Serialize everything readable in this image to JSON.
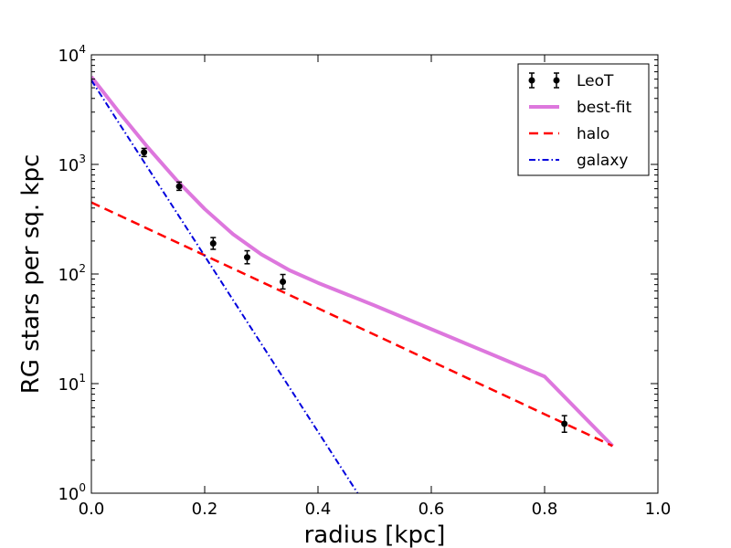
{
  "chart_data": {
    "type": "line",
    "xlabel": "radius [kpc]",
    "ylabel": "RG stars per sq. kpc",
    "xlim": [
      0.0,
      1.0
    ],
    "ylim": [
      1,
      10000
    ],
    "yscale": "log",
    "grid": false,
    "legend_position": "top-right",
    "x_ticks": [
      {
        "value": 0.0,
        "label": "0.0"
      },
      {
        "value": 0.2,
        "label": "0.2"
      },
      {
        "value": 0.4,
        "label": "0.4"
      },
      {
        "value": 0.6,
        "label": "0.6"
      },
      {
        "value": 0.8,
        "label": "0.8"
      },
      {
        "value": 1.0,
        "label": "1.0"
      }
    ],
    "y_ticks": [
      {
        "value": 1,
        "base": "10",
        "exp": "0"
      },
      {
        "value": 10,
        "base": "10",
        "exp": "1"
      },
      {
        "value": 100,
        "base": "10",
        "exp": "2"
      },
      {
        "value": 1000,
        "base": "10",
        "exp": "3"
      },
      {
        "value": 10000,
        "base": "10",
        "exp": "4"
      }
    ],
    "observed": {
      "name": "LeoT",
      "color": "#000000",
      "points": [
        {
          "x": 0.093,
          "y": 1290,
          "err_low": 1180,
          "err_high": 1400
        },
        {
          "x": 0.155,
          "y": 630,
          "err_low": 580,
          "err_high": 690
        },
        {
          "x": 0.215,
          "y": 190,
          "err_low": 168,
          "err_high": 215
        },
        {
          "x": 0.275,
          "y": 142,
          "err_low": 124,
          "err_high": 163
        },
        {
          "x": 0.338,
          "y": 85,
          "err_low": 73,
          "err_high": 99
        },
        {
          "x": 0.835,
          "y": 4.3,
          "err_low": 3.6,
          "err_high": 5.1
        }
      ]
    },
    "series": [
      {
        "name": "best-fit",
        "color": "#dd77dd",
        "style": "solid",
        "x": [
          0.0,
          0.05,
          0.1,
          0.15,
          0.2,
          0.25,
          0.3,
          0.35,
          0.4,
          0.5,
          0.6,
          0.7,
          0.8,
          0.92
        ],
        "values": [
          6300,
          2942,
          1423,
          722,
          392,
          231,
          151,
          108,
          83,
          51.6,
          31.4,
          19.1,
          11.6,
          2.7
        ]
      },
      {
        "name": "halo",
        "color": "#ff0000",
        "style": "dashed",
        "x": [
          0.0,
          0.92
        ],
        "values": [
          450,
          2.7
        ]
      },
      {
        "name": "galaxy",
        "color": "#0000dd",
        "style": "dashdot",
        "x": [
          0.0,
          0.47
        ],
        "values": [
          5850,
          1.0
        ]
      }
    ]
  }
}
